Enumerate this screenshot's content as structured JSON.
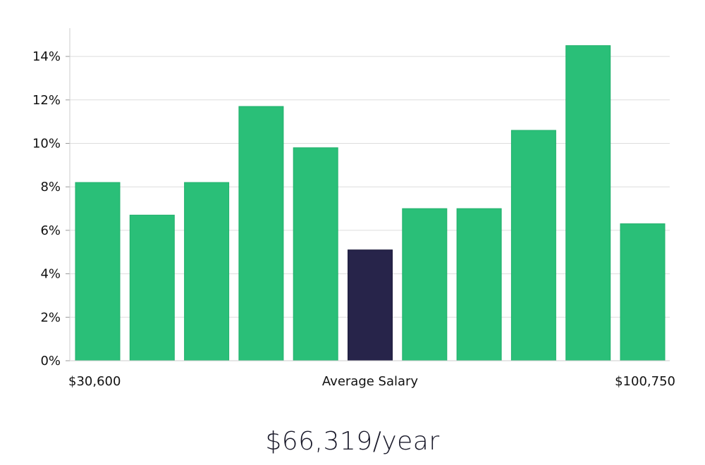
{
  "chart_data": {
    "type": "bar",
    "values": [
      8.2,
      6.7,
      8.2,
      11.7,
      9.8,
      5.1,
      7.0,
      7.0,
      10.6,
      14.5,
      6.3
    ],
    "highlight_index": 5,
    "y_ticks": [
      "0%",
      "2%",
      "4%",
      "6%",
      "8%",
      "10%",
      "12%",
      "14%"
    ],
    "ylim": [
      0,
      15.3
    ],
    "x_labels": {
      "left": "$30,600",
      "center": "Average Salary",
      "right": "$100,750"
    },
    "grid": true,
    "colors": {
      "bar": "#2abf78",
      "highlight": "#27244a",
      "grid": "#dddddd"
    }
  },
  "summary": {
    "salary_text": "$66,319/year"
  }
}
